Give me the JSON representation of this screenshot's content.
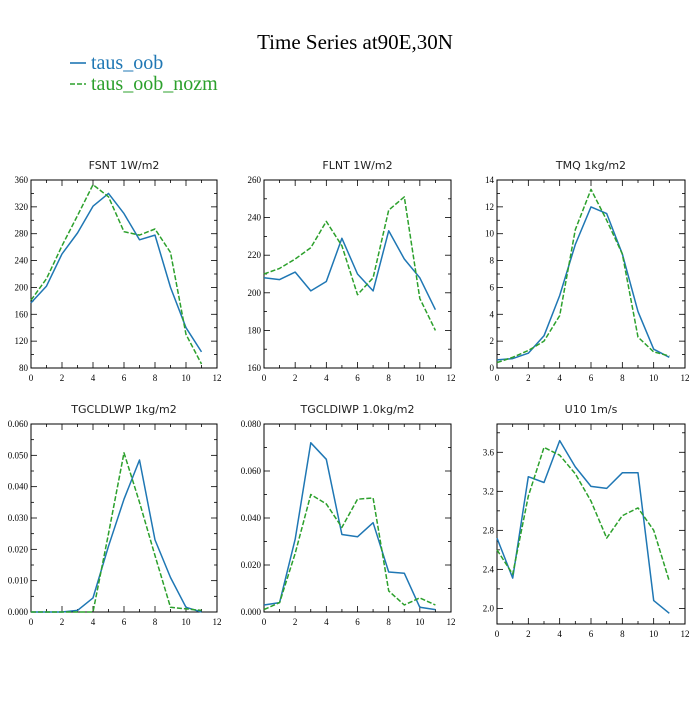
{
  "figure": {
    "title": "Time Series at90E,30N",
    "legend": [
      {
        "label": "taus_oob",
        "color": "#1f77b4",
        "dash": "solid"
      },
      {
        "label": "taus_oob_nozm",
        "color": "#2ca02c",
        "dash": "dashed"
      }
    ]
  },
  "chart_data": [
    {
      "type": "line",
      "title": "FSNT   1W/m2",
      "x": [
        0,
        1,
        2,
        3,
        4,
        5,
        6,
        7,
        8,
        9,
        10,
        11
      ],
      "xlim": [
        0,
        12
      ],
      "xticks": [
        "0",
        "2",
        "4",
        "6",
        "8",
        "10",
        "12"
      ],
      "ylim": [
        80,
        360
      ],
      "yticks": [
        "80",
        "120",
        "160",
        "200",
        "240",
        "280",
        "320",
        "360"
      ],
      "series": [
        {
          "name": "taus_oob",
          "values": [
            177,
            202,
            250,
            281,
            321,
            340,
            310,
            271,
            278,
            200,
            140,
            104
          ]
        },
        {
          "name": "taus_oob_nozm",
          "values": [
            181,
            213,
            262,
            307,
            353,
            335,
            283,
            278,
            287,
            252,
            130,
            86
          ]
        }
      ]
    },
    {
      "type": "line",
      "title": "FLNT   1W/m2",
      "x": [
        0,
        1,
        2,
        3,
        4,
        5,
        6,
        7,
        8,
        9,
        10,
        11
      ],
      "xlim": [
        0,
        12
      ],
      "xticks": [
        "0",
        "2",
        "4",
        "6",
        "8",
        "10",
        "12"
      ],
      "ylim": [
        160,
        260
      ],
      "yticks": [
        "160",
        "180",
        "200",
        "220",
        "240",
        "260"
      ],
      "series": [
        {
          "name": "taus_oob",
          "values": [
            208,
            207,
            211,
            201,
            206,
            229,
            210,
            201,
            233,
            218,
            208,
            191
          ]
        },
        {
          "name": "taus_oob_nozm",
          "values": [
            210,
            213,
            218,
            224,
            238,
            225,
            199,
            208,
            244,
            251,
            197,
            180
          ]
        }
      ]
    },
    {
      "type": "line",
      "title": "TMQ   1kg/m2",
      "x": [
        0,
        1,
        2,
        3,
        4,
        5,
        6,
        7,
        8,
        9,
        10,
        11
      ],
      "xlim": [
        0,
        12
      ],
      "xticks": [
        "0",
        "2",
        "4",
        "6",
        "8",
        "10",
        "12"
      ],
      "ylim": [
        0,
        14
      ],
      "yticks": [
        "0",
        "2",
        "4",
        "6",
        "8",
        "10",
        "12",
        "14"
      ],
      "series": [
        {
          "name": "taus_oob",
          "values": [
            0.6,
            0.7,
            1.1,
            2.4,
            5.4,
            9.2,
            12.0,
            11.5,
            8.5,
            4.2,
            1.4,
            0.8
          ]
        },
        {
          "name": "taus_oob_nozm",
          "values": [
            0.4,
            0.8,
            1.3,
            2.0,
            3.9,
            10.3,
            13.3,
            11.0,
            8.5,
            2.3,
            1.2,
            0.9
          ]
        }
      ]
    },
    {
      "type": "line",
      "title": "TGCLDLWP   1kg/m2",
      "x": [
        0,
        1,
        2,
        3,
        4,
        5,
        6,
        7,
        8,
        9,
        10,
        11
      ],
      "xlim": [
        0,
        12
      ],
      "xticks": [
        "0",
        "2",
        "4",
        "6",
        "8",
        "10",
        "12"
      ],
      "ylim": [
        0,
        0.06
      ],
      "yticks": [
        "0.000",
        "0.010",
        "0.020",
        "0.030",
        "0.040",
        "0.050",
        "0.060"
      ],
      "series": [
        {
          "name": "taus_oob",
          "values": [
            0.0,
            0.0,
            0.0,
            0.0005,
            0.0045,
            0.021,
            0.036,
            0.0485,
            0.023,
            0.011,
            0.0015,
            0.0
          ]
        },
        {
          "name": "taus_oob_nozm",
          "values": [
            0.0,
            0.0,
            0.0,
            0.0,
            0.0,
            0.025,
            0.0508,
            0.035,
            0.018,
            0.0015,
            0.001,
            0.0005
          ]
        }
      ]
    },
    {
      "type": "line",
      "title": "TGCLDIWP   1.0kg/m2",
      "x": [
        0,
        1,
        2,
        3,
        4,
        5,
        6,
        7,
        8,
        9,
        10,
        11
      ],
      "xlim": [
        0,
        12
      ],
      "xticks": [
        "0",
        "2",
        "4",
        "6",
        "8",
        "10",
        "12"
      ],
      "ylim": [
        0,
        0.08
      ],
      "yticks": [
        "0.000",
        "0.020",
        "0.040",
        "0.060",
        "0.080"
      ],
      "series": [
        {
          "name": "taus_oob",
          "values": [
            0.003,
            0.004,
            0.031,
            0.072,
            0.065,
            0.033,
            0.032,
            0.038,
            0.017,
            0.0165,
            0.002,
            0.001
          ]
        },
        {
          "name": "taus_oob_nozm",
          "values": [
            0.001,
            0.004,
            0.025,
            0.05,
            0.046,
            0.036,
            0.048,
            0.0485,
            0.009,
            0.003,
            0.006,
            0.003
          ]
        }
      ]
    },
    {
      "type": "line",
      "title": "U10   1m/s",
      "x": [
        0,
        1,
        2,
        3,
        4,
        5,
        6,
        7,
        8,
        9,
        10,
        11
      ],
      "xlim": [
        0,
        12
      ],
      "xticks": [
        "0",
        "2",
        "4",
        "6",
        "8",
        "10",
        "12"
      ],
      "ylim": [
        1.84,
        3.89
      ],
      "yticks": [
        "2.0",
        "2.4",
        "2.8",
        "3.2",
        "3.6"
      ],
      "series": [
        {
          "name": "taus_oob",
          "values": [
            2.72,
            2.31,
            3.35,
            3.29,
            3.72,
            3.45,
            3.25,
            3.23,
            3.39,
            3.39,
            2.08,
            1.95
          ]
        },
        {
          "name": "taus_oob_nozm",
          "values": [
            2.6,
            2.35,
            3.15,
            3.65,
            3.57,
            3.38,
            3.1,
            2.72,
            2.95,
            3.03,
            2.8,
            2.28
          ]
        }
      ]
    }
  ]
}
